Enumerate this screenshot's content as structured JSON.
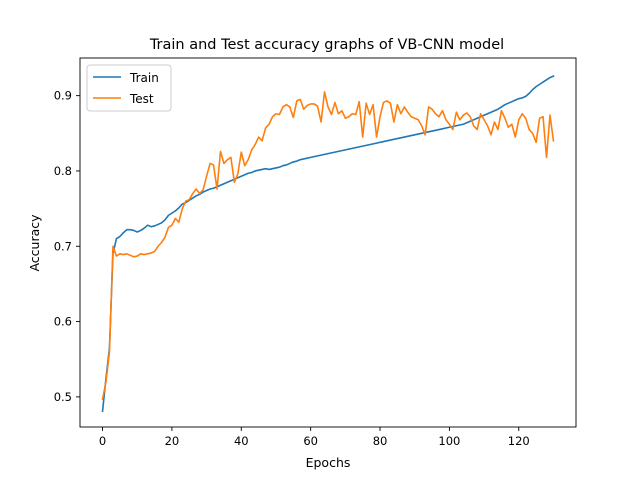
{
  "chart_data": {
    "type": "line",
    "title": "Train and Test accuracy graphs of VB-CNN model",
    "xlabel": "Epochs",
    "ylabel": "Accuracy",
    "xlim": [
      -6.5,
      136.5
    ],
    "ylim": [
      0.46,
      0.95
    ],
    "xticks": [
      0,
      20,
      40,
      60,
      80,
      100,
      120
    ],
    "xtick_labels": [
      "0",
      "20",
      "40",
      "60",
      "80",
      "100",
      "120"
    ],
    "yticks": [
      0.5,
      0.6,
      0.7,
      0.8,
      0.9
    ],
    "ytick_labels": [
      "0.5",
      "0.6",
      "0.7",
      "0.8",
      "0.9"
    ],
    "grid": false,
    "legend_position": "top-left",
    "series": [
      {
        "name": "Train",
        "color": "#1f77b4",
        "x": [
          0,
          1,
          2,
          3,
          4,
          5,
          6,
          7,
          8,
          9,
          10,
          11,
          12,
          13,
          14,
          15,
          16,
          17,
          18,
          19,
          20,
          21,
          22,
          23,
          24,
          25,
          26,
          27,
          28,
          29,
          30,
          31,
          32,
          33,
          34,
          35,
          36,
          37,
          38,
          39,
          40,
          41,
          42,
          43,
          44,
          45,
          46,
          47,
          48,
          49,
          50,
          51,
          52,
          53,
          54,
          55,
          56,
          57,
          58,
          59,
          60,
          61,
          62,
          63,
          64,
          65,
          66,
          67,
          68,
          69,
          70,
          71,
          72,
          73,
          74,
          75,
          76,
          77,
          78,
          79,
          80,
          81,
          82,
          83,
          84,
          85,
          86,
          87,
          88,
          89,
          90,
          91,
          92,
          93,
          94,
          95,
          96,
          97,
          98,
          99,
          100,
          101,
          102,
          103,
          104,
          105,
          106,
          107,
          108,
          109,
          110,
          111,
          112,
          113,
          114,
          115,
          116,
          117,
          118,
          119,
          120,
          121,
          122,
          123,
          124,
          125,
          126,
          127,
          128,
          129,
          130
        ],
        "values": [
          0.481,
          0.525,
          0.565,
          0.69,
          0.71,
          0.713,
          0.718,
          0.722,
          0.722,
          0.721,
          0.719,
          0.721,
          0.724,
          0.728,
          0.726,
          0.727,
          0.729,
          0.731,
          0.735,
          0.741,
          0.744,
          0.747,
          0.751,
          0.756,
          0.758,
          0.761,
          0.764,
          0.767,
          0.769,
          0.772,
          0.774,
          0.776,
          0.777,
          0.779,
          0.781,
          0.783,
          0.785,
          0.787,
          0.789,
          0.791,
          0.793,
          0.795,
          0.797,
          0.798,
          0.8,
          0.801,
          0.802,
          0.803,
          0.802,
          0.803,
          0.804,
          0.805,
          0.807,
          0.808,
          0.81,
          0.812,
          0.813,
          0.815,
          0.816,
          0.817,
          0.818,
          0.819,
          0.82,
          0.821,
          0.822,
          0.823,
          0.824,
          0.825,
          0.826,
          0.827,
          0.828,
          0.829,
          0.83,
          0.831,
          0.832,
          0.833,
          0.834,
          0.835,
          0.836,
          0.837,
          0.838,
          0.839,
          0.84,
          0.841,
          0.842,
          0.843,
          0.844,
          0.845,
          0.846,
          0.847,
          0.848,
          0.849,
          0.85,
          0.851,
          0.852,
          0.853,
          0.854,
          0.855,
          0.856,
          0.857,
          0.858,
          0.859,
          0.86,
          0.861,
          0.862,
          0.864,
          0.866,
          0.868,
          0.87,
          0.872,
          0.874,
          0.876,
          0.878,
          0.88,
          0.882,
          0.885,
          0.888,
          0.89,
          0.892,
          0.894,
          0.896,
          0.897,
          0.899,
          0.903,
          0.908,
          0.912,
          0.915,
          0.918,
          0.921,
          0.924,
          0.926
        ]
      },
      {
        "name": "Test",
        "color": "#ff7f0e",
        "x": [
          0,
          1,
          2,
          3,
          4,
          5,
          6,
          7,
          8,
          9,
          10,
          11,
          12,
          13,
          14,
          15,
          16,
          17,
          18,
          19,
          20,
          21,
          22,
          23,
          24,
          25,
          26,
          27,
          28,
          29,
          30,
          31,
          32,
          33,
          34,
          35,
          36,
          37,
          38,
          39,
          40,
          41,
          42,
          43,
          44,
          45,
          46,
          47,
          48,
          49,
          50,
          51,
          52,
          53,
          54,
          55,
          56,
          57,
          58,
          59,
          60,
          61,
          62,
          63,
          64,
          65,
          66,
          67,
          68,
          69,
          70,
          71,
          72,
          73,
          74,
          75,
          76,
          77,
          78,
          79,
          80,
          81,
          82,
          83,
          84,
          85,
          86,
          87,
          88,
          89,
          90,
          91,
          92,
          93,
          94,
          95,
          96,
          97,
          98,
          99,
          100,
          101,
          102,
          103,
          104,
          105,
          106,
          107,
          108,
          109,
          110,
          111,
          112,
          113,
          114,
          115,
          116,
          117,
          118,
          119,
          120,
          121,
          122,
          123,
          124,
          125,
          126,
          127,
          128,
          129,
          130
        ],
        "values": [
          0.497,
          0.52,
          0.56,
          0.7,
          0.687,
          0.69,
          0.689,
          0.69,
          0.688,
          0.686,
          0.687,
          0.69,
          0.689,
          0.69,
          0.691,
          0.693,
          0.7,
          0.705,
          0.712,
          0.725,
          0.728,
          0.737,
          0.732,
          0.75,
          0.76,
          0.762,
          0.77,
          0.776,
          0.77,
          0.775,
          0.793,
          0.81,
          0.808,
          0.776,
          0.826,
          0.81,
          0.815,
          0.818,
          0.785,
          0.796,
          0.825,
          0.807,
          0.815,
          0.828,
          0.835,
          0.845,
          0.84,
          0.857,
          0.862,
          0.872,
          0.876,
          0.875,
          0.885,
          0.888,
          0.885,
          0.871,
          0.893,
          0.895,
          0.882,
          0.887,
          0.889,
          0.889,
          0.886,
          0.865,
          0.905,
          0.885,
          0.875,
          0.891,
          0.876,
          0.88,
          0.87,
          0.872,
          0.876,
          0.875,
          0.892,
          0.845,
          0.89,
          0.875,
          0.888,
          0.845,
          0.872,
          0.891,
          0.893,
          0.89,
          0.865,
          0.888,
          0.876,
          0.885,
          0.878,
          0.872,
          0.87,
          0.868,
          0.86,
          0.848,
          0.885,
          0.882,
          0.876,
          0.872,
          0.88,
          0.868,
          0.862,
          0.855,
          0.878,
          0.868,
          0.874,
          0.877,
          0.872,
          0.86,
          0.855,
          0.876,
          0.868,
          0.86,
          0.848,
          0.865,
          0.855,
          0.88,
          0.87,
          0.858,
          0.862,
          0.845,
          0.868,
          0.876,
          0.87,
          0.855,
          0.85,
          0.838,
          0.87,
          0.872,
          0.818,
          0.874,
          0.84
        ]
      }
    ]
  }
}
